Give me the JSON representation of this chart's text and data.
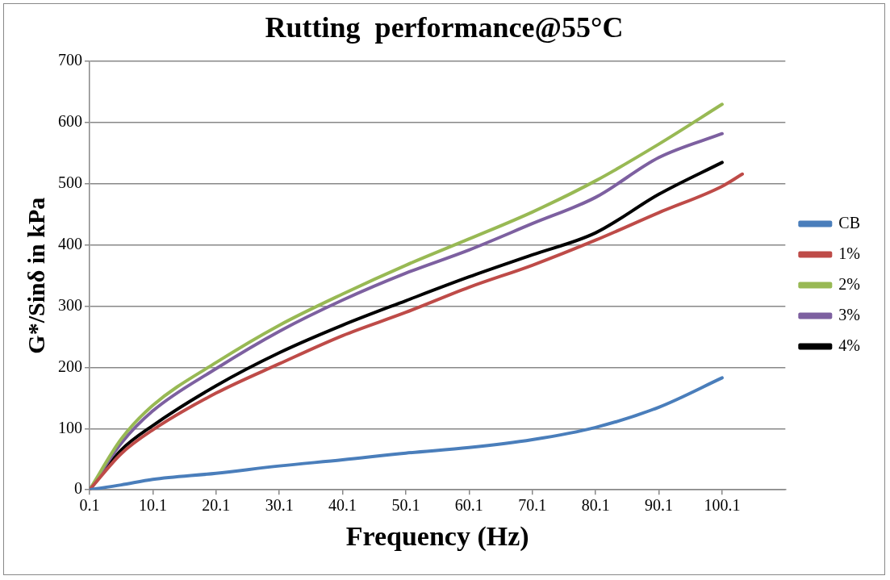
{
  "chart_data": {
    "type": "line",
    "title": "Rutting  performance@55°C",
    "xlabel": "Frequency (Hz)",
    "ylabel": "G*/Sinδ in kPa",
    "x": [
      0.1,
      5.1,
      10.1,
      20.1,
      30.1,
      40.1,
      50.1,
      60.1,
      70.1,
      80.1,
      90.1,
      100.1
    ],
    "xlim": [
      0.1,
      110.1
    ],
    "xticks": [
      0.1,
      10.1,
      20.1,
      30.1,
      40.1,
      50.1,
      60.1,
      70.1,
      80.1,
      90.1,
      100.1
    ],
    "ylim": [
      0,
      700
    ],
    "yticks": [
      0,
      100,
      200,
      300,
      400,
      500,
      600,
      700
    ],
    "grid": "y",
    "legend": "right",
    "marker": "none",
    "line_style": "solid",
    "series": [
      {
        "name": "CB",
        "color": "#4a7ebb",
        "values": [
          0,
          8,
          17,
          27,
          39,
          49,
          60,
          69,
          82,
          102,
          135,
          183
        ]
      },
      {
        "name": "1%",
        "color": "#be4b48",
        "x": [
          0.1,
          5.1,
          10.1,
          20.1,
          30.1,
          40.1,
          50.1,
          60.1,
          70.1,
          80.1,
          90.1,
          100.1,
          103.3
        ],
        "values": [
          0,
          59,
          98,
          158,
          206,
          252,
          290,
          331,
          367,
          408,
          453,
          496,
          516
        ]
      },
      {
        "name": "2%",
        "color": "#98b954",
        "values": [
          0,
          83,
          138,
          208,
          269,
          320,
          367,
          410,
          454,
          505,
          565,
          630
        ]
      },
      {
        "name": "3%",
        "color": "#7d60a0",
        "values": [
          0,
          76,
          129,
          198,
          259,
          310,
          354,
          392,
          435,
          478,
          543,
          582
        ]
      },
      {
        "name": "4%",
        "color": "#000000",
        "values": [
          0,
          65,
          105,
          170,
          224,
          269,
          309,
          348,
          384,
          420,
          483,
          535
        ]
      }
    ]
  }
}
